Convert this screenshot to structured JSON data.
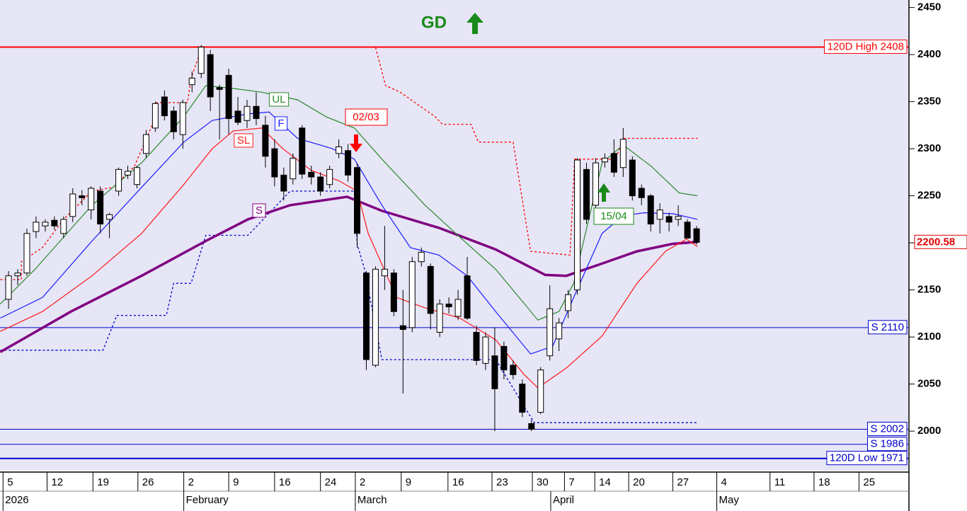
{
  "chart_data": {
    "type": "candlestick",
    "xlim": [
      -0.93,
      98.07
    ],
    "ylim": [
      1958,
      2458
    ],
    "yticks": [
      2450,
      2400,
      2350,
      2300,
      2250,
      2200,
      2150,
      2100,
      2050,
      2000
    ],
    "xticks": [
      {
        "value": -0.6,
        "label": "5"
      },
      {
        "value": 4.2,
        "label": "12"
      },
      {
        "value": 9.2,
        "label": "19"
      },
      {
        "value": 14.1,
        "label": "26"
      },
      {
        "value": 19.1,
        "label": "2"
      },
      {
        "value": 24.0,
        "label": "9"
      },
      {
        "value": 29.0,
        "label": "16"
      },
      {
        "value": 34.0,
        "label": "24"
      },
      {
        "value": 37.8,
        "label": "2"
      },
      {
        "value": 42.8,
        "label": "9"
      },
      {
        "value": 47.9,
        "label": "16"
      },
      {
        "value": 52.7,
        "label": "23"
      },
      {
        "value": 57.1,
        "label": "30"
      },
      {
        "value": 60.6,
        "label": "7"
      },
      {
        "value": 63.9,
        "label": "14"
      },
      {
        "value": 67.6,
        "label": "20"
      },
      {
        "value": 72.4,
        "label": "27"
      },
      {
        "value": 77.2,
        "label": "4"
      },
      {
        "value": 83.0,
        "label": "11"
      },
      {
        "value": 87.8,
        "label": "18"
      },
      {
        "value": 92.7,
        "label": "25"
      }
    ],
    "month_ticks": [
      {
        "value": -0.6,
        "label": "2026"
      },
      {
        "value": 19.1,
        "label": "February"
      },
      {
        "value": 37.8,
        "label": "March"
      },
      {
        "value": 59.1,
        "label": "April"
      },
      {
        "value": 77.2,
        "label": "May"
      }
    ],
    "open": [
      2140,
      2165,
      2168,
      2212,
      2218,
      2224,
      2210,
      2228,
      2250,
      2235,
      2255,
      2225,
      2255,
      2272,
      2262,
      2295,
      2322,
      2355,
      2340,
      2315,
      2368,
      2380,
      2400,
      2365,
      2378,
      2340,
      2330,
      2345,
      2325,
      2300,
      2272,
      2268,
      2322,
      2275,
      2270,
      2262,
      2295,
      2298,
      2280,
      2168,
      2070,
      2165,
      2168,
      2112,
      2110,
      2180,
      2175,
      2105,
      2135,
      2122,
      2165,
      2105,
      2072,
      2080,
      2090,
      2070,
      2050,
      2008,
      2020,
      2080,
      2098,
      2128,
      2150,
      2278,
      2240,
      2286,
      2295,
      2280,
      2288,
      2258,
      2250,
      2225,
      2228,
      2225,
      2222,
      2215
    ],
    "high": [
      2170,
      2172,
      2215,
      2228,
      2225,
      2228,
      2228,
      2258,
      2256,
      2260,
      2260,
      2232,
      2280,
      2282,
      2282,
      2320,
      2350,
      2362,
      2345,
      2352,
      2382,
      2410,
      2405,
      2368,
      2385,
      2355,
      2352,
      2360,
      2335,
      2310,
      2280,
      2295,
      2325,
      2282,
      2275,
      2282,
      2310,
      2305,
      2285,
      2170,
      2175,
      2218,
      2172,
      2150,
      2185,
      2195,
      2178,
      2140,
      2142,
      2150,
      2185,
      2112,
      2105,
      2110,
      2095,
      2075,
      2055,
      2012,
      2068,
      2155,
      2120,
      2150,
      2290,
      2285,
      2290,
      2295,
      2310,
      2322,
      2292,
      2262,
      2252,
      2242,
      2232,
      2240,
      2225,
      2218
    ],
    "low": [
      2130,
      2155,
      2165,
      2205,
      2212,
      2214,
      2205,
      2222,
      2240,
      2225,
      2210,
      2205,
      2250,
      2268,
      2258,
      2290,
      2318,
      2330,
      2310,
      2300,
      2360,
      2375,
      2340,
      2310,
      2315,
      2325,
      2322,
      2325,
      2280,
      2260,
      2245,
      2262,
      2268,
      2262,
      2250,
      2258,
      2290,
      2265,
      2195,
      2065,
      2068,
      2150,
      2122,
      2040,
      2105,
      2175,
      2108,
      2100,
      2125,
      2118,
      2118,
      2070,
      2065,
      2000,
      2055,
      2055,
      2015,
      2000,
      2018,
      2075,
      2085,
      2120,
      2145,
      2220,
      2235,
      2280,
      2270,
      2270,
      2245,
      2240,
      2212,
      2210,
      2212,
      2218,
      2205,
      2198
    ],
    "close": [
      2165,
      2168,
      2210,
      2222,
      2222,
      2218,
      2225,
      2252,
      2248,
      2258,
      2220,
      2230,
      2278,
      2276,
      2280,
      2315,
      2348,
      2335,
      2318,
      2349,
      2375,
      2408,
      2355,
      2363,
      2332,
      2328,
      2345,
      2332,
      2292,
      2270,
      2255,
      2290,
      2273,
      2270,
      2255,
      2278,
      2302,
      2272,
      2210,
      2076,
      2172,
      2172,
      2127,
      2108,
      2180,
      2190,
      2125,
      2135,
      2132,
      2140,
      2120,
      2075,
      2100,
      2045,
      2065,
      2060,
      2020,
      2002,
      2065,
      2130,
      2115,
      2145,
      2288,
      2225,
      2285,
      2290,
      2275,
      2310,
      2250,
      2248,
      2220,
      2235,
      2222,
      2228,
      2205,
      2200.58
    ],
    "lines": [
      {
        "name": "S",
        "color": "#800080",
        "x": [
          -0.9,
          6.8,
          14.5,
          21.5,
          26.1,
          30.7,
          36.9,
          40.7,
          46.9,
          53.1,
          58.5,
          60.8,
          64.7,
          68.5,
          72.4,
          75.1
        ],
        "values": [
          2084,
          2127,
          2165,
          2202,
          2225,
          2240,
          2249,
          2234,
          2216,
          2193,
          2166,
          2165,
          2178,
          2191,
          2199,
          2201
        ]
      },
      {
        "name": "F",
        "color": "#1c1cff",
        "x": [
          -0.9,
          3.7,
          9.1,
          14.5,
          19.1,
          22.2,
          26.1,
          28.4,
          31.5,
          35.3,
          37.7,
          40.7,
          43.8,
          46.9,
          50.0,
          53.1,
          56.9,
          59.3,
          61.6,
          64.7,
          67.0,
          69.3,
          72.4,
          75.1
        ],
        "values": [
          2120,
          2142,
          2202,
          2259,
          2307,
          2330,
          2337,
          2339,
          2311,
          2300,
          2289,
          2240,
          2195,
          2187,
          2165,
          2127,
          2082,
          2090,
          2142,
          2210,
          2229,
          2232,
          2231,
          2225
        ]
      },
      {
        "name": "UL",
        "color": "#2a8a2a",
        "x": [
          -0.9,
          2.9,
          9.1,
          14.5,
          19.1,
          21.5,
          24.5,
          27.6,
          31.5,
          34.6,
          37.7,
          40.7,
          45.4,
          49.2,
          53.1,
          57.7,
          60.0,
          61.6,
          64.7,
          67.0,
          70.1,
          73.1,
          75.1
        ],
        "values": [
          2135,
          2172,
          2240,
          2285,
          2334,
          2367,
          2364,
          2360,
          2352,
          2334,
          2322,
          2289,
          2240,
          2206,
          2172,
          2118,
          2127,
          2157,
          2285,
          2304,
          2281,
          2253,
          2250
        ]
      },
      {
        "name": "SL",
        "color": "#ff1a1a",
        "x": [
          -0.9,
          3.7,
          9.1,
          14.5,
          19.1,
          22.2,
          24.5,
          27.6,
          29.9,
          33.0,
          36.0,
          38.0,
          39.2,
          42.3,
          45.4,
          49.2,
          53.1,
          56.2,
          57.7,
          60.8,
          64.7,
          68.5,
          71.6,
          73.9,
          75.1
        ],
        "values": [
          2106,
          2127,
          2165,
          2210,
          2262,
          2300,
          2319,
          2322,
          2300,
          2277,
          2266,
          2255,
          2210,
          2142,
          2131,
          2120,
          2097,
          2060,
          2046,
          2067,
          2101,
          2157,
          2191,
          2204,
          2196
        ]
      }
    ],
    "dashed_lines": [
      {
        "color": "#ff0000",
        "x": [
          -0.9,
          1.4,
          1.4,
          3.7,
          6.0,
          9.1,
          11.4,
          13.7,
          15.7,
          16.0,
          19.5,
          19.9,
          21.1,
          40.0,
          41.1,
          42.7,
          46.5,
          47.3,
          50.4,
          51.2,
          55.0,
          56.9,
          61.2,
          61.7,
          66.2,
          67.0,
          75.1
        ],
        "values": [
          2161,
          2161,
          2180,
          2195,
          2225,
          2255,
          2259,
          2281,
          2326,
          2349,
          2349,
          2375,
          2408,
          2408,
          2367,
          2360,
          2334,
          2326,
          2326,
          2307,
          2307,
          2191,
          2187,
          2289,
          2289,
          2311,
          2311
        ]
      },
      {
        "color": "#0000cc",
        "x": [
          -0.9,
          10.3,
          11.8,
          17.2,
          18.0,
          19.9,
          21.5,
          26.1,
          30.7,
          37.7,
          38.0,
          38.8,
          40.7,
          53.1,
          57.3,
          75.1
        ],
        "values": [
          2086,
          2086,
          2123,
          2123,
          2157,
          2157,
          2208,
          2208,
          2255,
          2255,
          2199,
          2172,
          2076,
          2076,
          2009,
          2009
        ]
      }
    ],
    "levels": [
      {
        "label": "120D High 2408",
        "value": 2408,
        "color": "#ff0000",
        "width": 2
      },
      {
        "label": "S 2110",
        "value": 2110,
        "color": "#0000cc",
        "width": 1
      },
      {
        "label": "S 2002",
        "value": 2002,
        "color": "#0000cc",
        "width": 1
      },
      {
        "label": "S 1986",
        "value": 1986,
        "color": "#0000cc",
        "width": 1
      },
      {
        "label": "120D Low 1971",
        "value": 1971,
        "color": "#0000cc",
        "width": 2
      }
    ],
    "last_price": 2200.58,
    "annotations": {
      "trend": "GD",
      "sell_signal": "02/03",
      "buy_signal": "15/04"
    }
  }
}
